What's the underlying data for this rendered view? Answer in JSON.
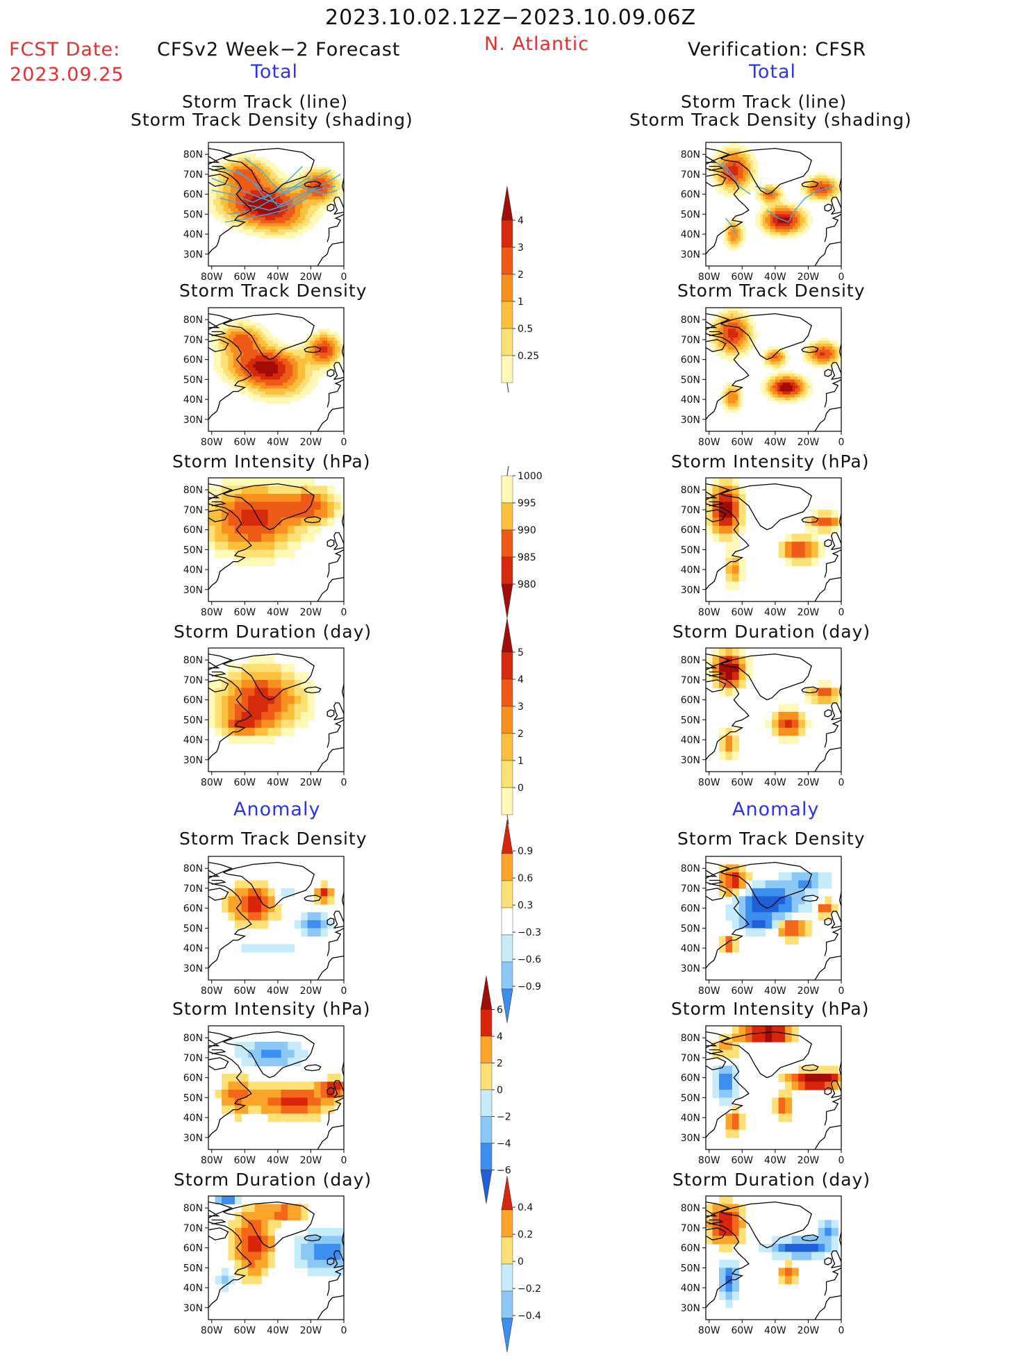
{
  "header": {
    "date_range": "2023.10.02.12Z−2023.10.09.06Z",
    "fcst_label": "FCST Date:",
    "fcst_date": "2023.09.25",
    "region": "N. Atlantic",
    "left_title": "CFSv2 Week−2 Forecast",
    "right_title": "Verification: CFSR",
    "total_label": "Total",
    "anomaly_label": "Anomaly"
  },
  "map_axes": {
    "lat_ticks": [
      "80N",
      "70N",
      "60N",
      "50N",
      "40N",
      "30N"
    ],
    "lon_ticks": [
      "80W",
      "60W",
      "40W",
      "20W",
      "0"
    ]
  },
  "colors": {
    "warm_scale": [
      "#fff9b8",
      "#fde076",
      "#fbbf3c",
      "#f7901f",
      "#ee5a17",
      "#d52a0c",
      "#a10d06"
    ],
    "anom_scale": [
      "#1f5fd8",
      "#3c8ef0",
      "#8cc8f5",
      "#c6ecfb",
      "#ffffff",
      "#fde076",
      "#fba42a",
      "#f4661a",
      "#d8260c",
      "#a10d06"
    ],
    "track_line": "#43a9e0"
  },
  "chart_data": [
    {
      "type": "heatmap",
      "id": "fc_track",
      "title_lines": [
        "Storm Track (line)",
        "Storm Track Density (shading)"
      ]
    },
    {
      "type": "heatmap",
      "id": "ob_track",
      "title_lines": [
        "Storm Track (line)",
        "Storm Track Density (shading)"
      ]
    },
    {
      "type": "heatmap",
      "id": "fc_dens",
      "title": "Storm Track Density"
    },
    {
      "type": "heatmap",
      "id": "ob_dens",
      "title": "Storm Track Density"
    },
    {
      "type": "heatmap",
      "id": "fc_int",
      "title": "Storm Intensity (hPa)"
    },
    {
      "type": "heatmap",
      "id": "ob_int",
      "title": "Storm Intensity (hPa)"
    },
    {
      "type": "heatmap",
      "id": "fc_dur",
      "title": "Storm Duration (day)"
    },
    {
      "type": "heatmap",
      "id": "ob_dur",
      "title": "Storm Duration (day)"
    },
    {
      "type": "heatmap",
      "id": "fc_adens",
      "title": "Storm Track Density"
    },
    {
      "type": "heatmap",
      "id": "ob_adens",
      "title": "Storm Track Density"
    },
    {
      "type": "heatmap",
      "id": "fc_aint",
      "title": "Storm Intensity (hPa)"
    },
    {
      "type": "heatmap",
      "id": "ob_aint",
      "title": "Storm Intensity (hPa)"
    },
    {
      "type": "heatmap",
      "id": "fc_adur",
      "title": "Storm Duration (day)"
    },
    {
      "type": "heatmap",
      "id": "ob_adur",
      "title": "Storm Duration (day)"
    }
  ],
  "colorbars": [
    {
      "name": "density",
      "labels": [
        "4",
        "3",
        "2",
        "1",
        "0.5",
        "0.25"
      ]
    },
    {
      "name": "intensity",
      "labels": [
        "1000",
        "995",
        "990",
        "985",
        "980"
      ]
    },
    {
      "name": "duration",
      "labels": [
        "5",
        "4",
        "3",
        "2",
        "1",
        "0"
      ]
    },
    {
      "name": "anom_density",
      "labels": [
        "0.9",
        "0.6",
        "0.3",
        "−0.3",
        "−0.6",
        "−0.9"
      ]
    },
    {
      "name": "anom_intensity",
      "labels": [
        "6",
        "4",
        "2",
        "0",
        "−2",
        "−4",
        "−6"
      ]
    },
    {
      "name": "anom_duration",
      "labels": [
        "0.4",
        "0.2",
        "0",
        "−0.2",
        "−0.4"
      ]
    }
  ]
}
